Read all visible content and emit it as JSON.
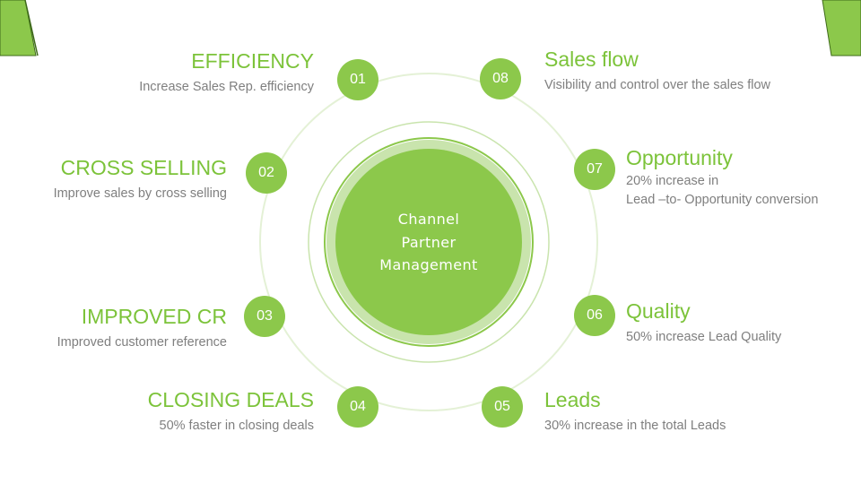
{
  "center": {
    "lines": [
      "Channel",
      "Partner",
      "Management"
    ]
  },
  "steps": [
    {
      "number": "01",
      "title": "EFFICIENCY",
      "desc": [
        "Increase Sales Rep. efficiency"
      ]
    },
    {
      "number": "02",
      "title": "CROSS SELLING",
      "desc": [
        "Improve sales by cross selling"
      ]
    },
    {
      "number": "03",
      "title": "IMPROVED CR",
      "desc": [
        "Improved customer reference"
      ]
    },
    {
      "number": "04",
      "title": "CLOSING DEALS",
      "desc": [
        "50% faster in closing deals"
      ]
    },
    {
      "number": "05",
      "title": "Leads",
      "desc": [
        "30% increase in the total Leads"
      ]
    },
    {
      "number": "06",
      "title": "Quality",
      "desc": [
        "50% increase Lead Quality"
      ]
    },
    {
      "number": "07",
      "title": "Opportunity",
      "desc": [
        "20% increase in",
        "Lead –to- Opportunity conversion"
      ]
    },
    {
      "number": "08",
      "title": "Sales flow",
      "desc": [
        "Visibility and control over the sales flow"
      ]
    }
  ],
  "colors": {
    "accent": "#8cc84b",
    "title": "#7cc33a",
    "description": "#7f7f7f",
    "ring_light": "#c9e4ad",
    "ring_faint": "#e4f1d6"
  }
}
